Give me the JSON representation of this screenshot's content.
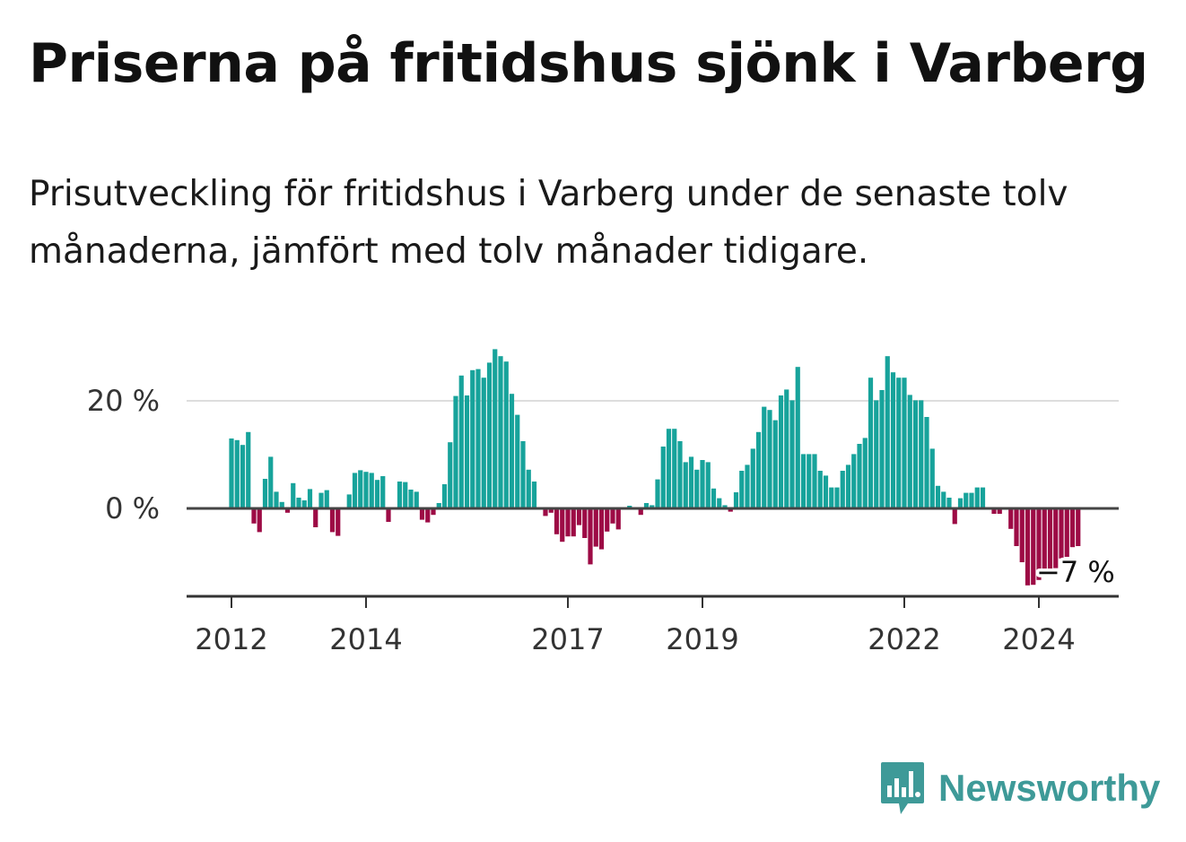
{
  "title": "Priserna på fritidshus sjönk i Varberg",
  "subtitle": "Prisutveckling för fritidshus i Varberg under de senaste tolv månaderna, jämfört med tolv månader tidigare.",
  "brand": {
    "name": "Newsworthy",
    "icon": "newsworthy-logo-icon",
    "color": "#3e9a98"
  },
  "chart_data": {
    "type": "bar",
    "series_name": "",
    "ylabel": "",
    "xlabel": "",
    "ylim": [
      -16,
      31
    ],
    "yticks": [
      {
        "value": 20,
        "label": "20 %"
      },
      {
        "value": 0,
        "label": "0 %"
      }
    ],
    "xticks": [
      {
        "date": "2012-01",
        "label": "2012"
      },
      {
        "date": "2014-01",
        "label": "2014"
      },
      {
        "date": "2017-01",
        "label": "2017"
      },
      {
        "date": "2019-01",
        "label": "2019"
      },
      {
        "date": "2022-01",
        "label": "2022"
      },
      {
        "date": "2024-01",
        "label": "2024"
      }
    ],
    "colors": {
      "positive": "#17a39b",
      "negative": "#9d0b45",
      "zero_line": "#444444",
      "grid": "#dddddd"
    },
    "grid": true,
    "end_label": "−7 %",
    "start": "2012-01",
    "values": [
      13,
      12.7,
      11.8,
      14.2,
      -2.8,
      -4.4,
      5.5,
      9.6,
      3.1,
      1.2,
      -0.8,
      4.7,
      2,
      1.5,
      3.6,
      -3.5,
      2.9,
      3.4,
      -4.4,
      -5.1,
      0,
      2.6,
      6.6,
      7.1,
      6.8,
      6.6,
      5.3,
      6,
      -2.5,
      0,
      5,
      4.9,
      3.5,
      3.1,
      -2.1,
      -2.6,
      -1.2,
      1,
      4.5,
      12.3,
      20.9,
      24.7,
      21,
      25.7,
      25.9,
      24.3,
      27.1,
      29.6,
      28.3,
      27.3,
      21.3,
      17.4,
      12.5,
      7.2,
      5,
      0,
      -1.4,
      -0.8,
      -4.8,
      -6.2,
      -5.2,
      -5.2,
      -3.1,
      -5.5,
      -10.4,
      -7.1,
      -7.6,
      -4.3,
      -2.8,
      -3.9,
      0.2,
      0.5,
      0,
      -1.2,
      1,
      0.6,
      5.4,
      11.5,
      14.8,
      14.8,
      12.5,
      8.6,
      9.6,
      7.2,
      9,
      8.6,
      3.7,
      1.9,
      0.6,
      -0.6,
      3,
      7,
      8.1,
      11.1,
      14.2,
      18.9,
      18.3,
      16.4,
      21,
      22.1,
      20.1,
      26.3,
      10.1,
      10.1,
      10.1,
      7,
      6.1,
      3.9,
      3.9,
      7,
      8.1,
      10.1,
      12,
      13.1,
      24.3,
      20.1,
      22,
      28.3,
      25.3,
      24.3,
      24.3,
      21.1,
      20.1,
      20.1,
      17,
      11.1,
      4.2,
      3.1,
      2,
      -2.9,
      1.9,
      2.9,
      2.9,
      3.9,
      3.9,
      0,
      -1,
      -1,
      0,
      -3.8,
      -7,
      -10,
      -14.3,
      -14.2,
      -13.3,
      -12.2,
      -11.2,
      -11.1,
      -9.3,
      -9,
      -7.2,
      -7
    ]
  }
}
